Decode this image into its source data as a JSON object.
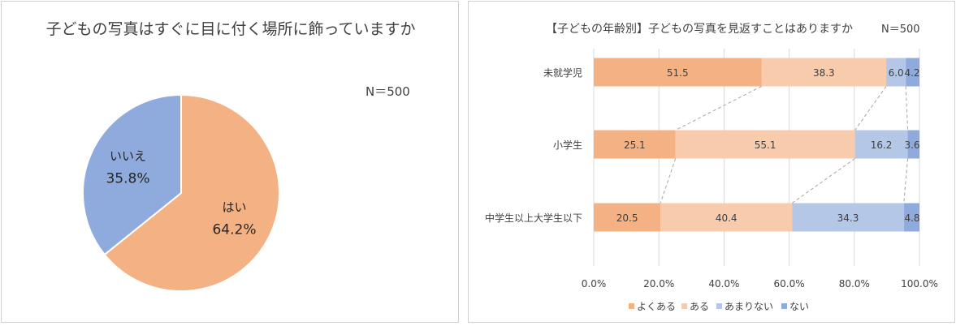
{
  "chart_data": [
    {
      "type": "pie",
      "title": "子どもの写真はすぐに目に付く場所に飾っていますか",
      "n_label": "N＝500",
      "slices": [
        {
          "name": "はい",
          "value": 64.2,
          "label": "64.2%",
          "color": "#F4B183"
        },
        {
          "name": "いいえ",
          "value": 35.8,
          "label": "35.8%",
          "color": "#8FAADC"
        }
      ]
    },
    {
      "type": "bar",
      "orientation": "horizontal",
      "stacked": true,
      "title": "【子どもの年齢別】子どもの写真を見返すことはありますか",
      "n_label": "N＝500",
      "categories": [
        "未就学児",
        "小学生",
        "中学生以上大学生以下"
      ],
      "series": [
        {
          "name": "よくある",
          "values": [
            51.5,
            25.1,
            20.5
          ],
          "labels": [
            "51.5",
            "25.1",
            "20.5"
          ],
          "color": "#F4B183"
        },
        {
          "name": "ある",
          "values": [
            38.3,
            55.1,
            40.4
          ],
          "labels": [
            "38.3",
            "55.1",
            "40.4"
          ],
          "color": "#F8CBAD"
        },
        {
          "name": "あまりない",
          "values": [
            6.0,
            16.2,
            34.3
          ],
          "labels": [
            "6.0",
            "16.2",
            "34.3"
          ],
          "color": "#B4C7E7"
        },
        {
          "name": "ない",
          "values": [
            4.2,
            3.6,
            4.8
          ],
          "labels": [
            "4.2",
            "3.6",
            "4.8"
          ],
          "color": "#8FAADC"
        }
      ],
      "xlim": [
        0,
        100
      ],
      "xticks": [
        "0.0%",
        "20.0%",
        "40.0%",
        "60.0%",
        "80.0%",
        "100.0%"
      ],
      "grid": true,
      "series_lines": true,
      "legend": "bottom"
    }
  ]
}
